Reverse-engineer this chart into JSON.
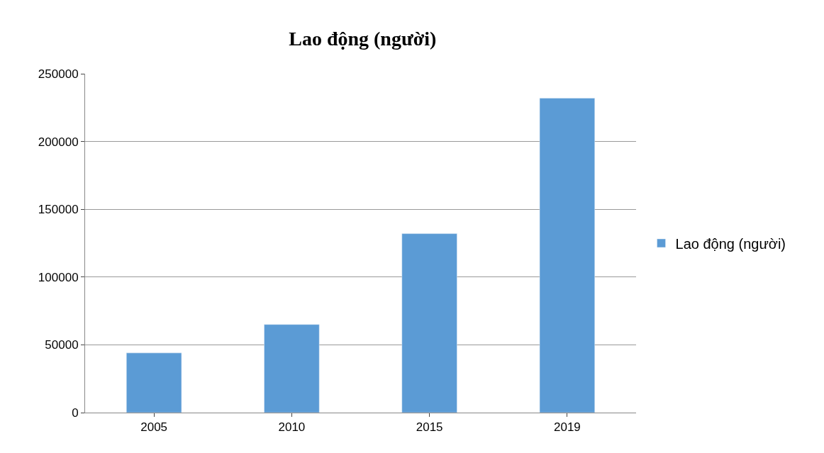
{
  "chart_data": {
    "type": "bar",
    "title": "Lao động (người)",
    "categories": [
      "2005",
      "2010",
      "2015",
      "2019"
    ],
    "series": [
      {
        "name": "Lao động (người)",
        "color": "#5b9bd5",
        "values": [
          44000,
          65000,
          132000,
          232000
        ]
      }
    ],
    "ylim": [
      0,
      250000
    ],
    "yticks": [
      0,
      50000,
      100000,
      150000,
      200000,
      250000
    ],
    "grid": "y",
    "legend": "right"
  }
}
